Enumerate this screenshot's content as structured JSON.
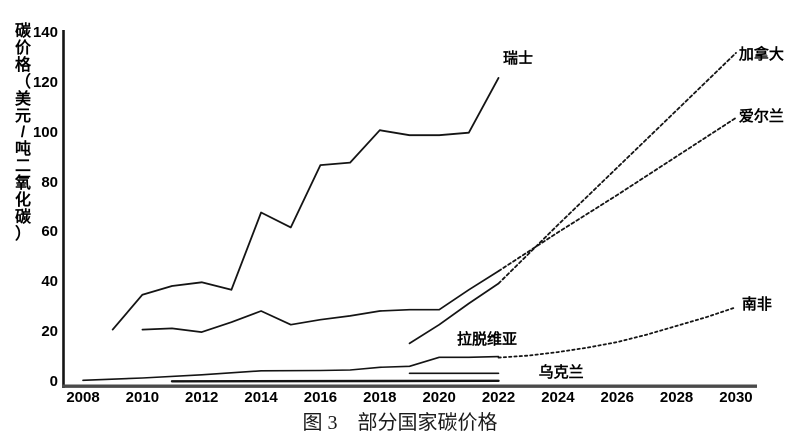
{
  "figure": {
    "caption": "图 3　部分国家碳价格"
  },
  "colors": {
    "line": "#141414",
    "x_axis": "#4a4a4a",
    "y_axis": "#141414",
    "background": "#ffffff"
  },
  "chart_data": {
    "type": "line",
    "title": "图 3　部分国家碳价格",
    "xlabel": "",
    "ylabel": "碳价格（美元/吨二氧化碳）",
    "xlim": [
      2007.3,
      2030.8
    ],
    "ylim": [
      0,
      140
    ],
    "grid": false,
    "legend_position": "inline-annotations",
    "y_ticks": [
      140,
      120,
      100,
      80,
      60,
      40,
      20,
      0
    ],
    "x_ticks": [
      2008,
      2010,
      2012,
      2014,
      2016,
      2018,
      2020,
      2022,
      2024,
      2026,
      2028,
      2030
    ],
    "series": [
      {
        "id": "switzerland",
        "label": "瑞士",
        "style": "solid",
        "width": 1.8,
        "label_anchor": [
          2022.15,
          129.5
        ],
        "points": [
          [
            2009,
            21
          ],
          [
            2010,
            35
          ],
          [
            2011,
            38.5
          ],
          [
            2012,
            40
          ],
          [
            2013,
            37
          ],
          [
            2014,
            68
          ],
          [
            2015,
            62
          ],
          [
            2016,
            87
          ],
          [
            2017,
            88
          ],
          [
            2018,
            101
          ],
          [
            2019,
            99
          ],
          [
            2020,
            99
          ],
          [
            2021,
            100
          ],
          [
            2022,
            122
          ]
        ]
      },
      {
        "id": "ireland",
        "label": "",
        "style": "solid",
        "width": 1.7,
        "points": [
          [
            2010,
            21
          ],
          [
            2011,
            21.5
          ],
          [
            2012,
            20
          ],
          [
            2013,
            24
          ],
          [
            2014,
            28.5
          ],
          [
            2015,
            23
          ],
          [
            2016,
            25
          ],
          [
            2017,
            26.5
          ],
          [
            2018,
            28.5
          ],
          [
            2019,
            29
          ],
          [
            2020,
            29
          ],
          [
            2021,
            37
          ],
          [
            2022,
            44.5
          ]
        ]
      },
      {
        "id": "ireland-projection",
        "label": "爱尔兰",
        "style": "dashed",
        "width": 1.8,
        "label_anchor": [
          2030.1,
          106.5
        ],
        "points": [
          [
            2022,
            44.5
          ],
          [
            2024,
            60
          ],
          [
            2026,
            75
          ],
          [
            2028,
            90.5
          ],
          [
            2030,
            106
          ]
        ]
      },
      {
        "id": "canada",
        "label": "",
        "style": "solid",
        "width": 1.7,
        "points": [
          [
            2019,
            15.5
          ],
          [
            2020,
            23
          ],
          [
            2021,
            31.5
          ],
          [
            2022,
            39.5
          ]
        ]
      },
      {
        "id": "canada-projection",
        "label": "加拿大",
        "style": "dashed",
        "width": 1.8,
        "label_anchor": [
          2030.1,
          131
        ],
        "points": [
          [
            2022,
            39.5
          ],
          [
            2024,
            63
          ],
          [
            2026,
            86
          ],
          [
            2028,
            109
          ],
          [
            2030,
            132
          ]
        ]
      },
      {
        "id": "latvia",
        "label": "拉脱维亚",
        "style": "solid",
        "width": 1.6,
        "label_anchor": [
          2020.6,
          16.9
        ],
        "points": [
          [
            2008,
            0.7
          ],
          [
            2010,
            1.6
          ],
          [
            2012,
            2.9
          ],
          [
            2014,
            4.5
          ],
          [
            2016,
            4.6
          ],
          [
            2017,
            4.8
          ],
          [
            2018,
            5.9
          ],
          [
            2019,
            6.3
          ],
          [
            2020,
            9.9
          ],
          [
            2021,
            9.9
          ],
          [
            2022,
            10.2
          ]
        ]
      },
      {
        "id": "ukraine",
        "label": "乌克兰",
        "style": "solid",
        "width": 1.6,
        "label_anchor": [
          2023.35,
          3.8
        ],
        "points": [
          [
            2019,
            3.5
          ],
          [
            2022,
            3.5
          ]
        ]
      },
      {
        "id": "ukraine-early",
        "label": "",
        "style": "solid",
        "width": 2.4,
        "points": [
          [
            2011,
            0.3
          ],
          [
            2018,
            0.4
          ],
          [
            2022,
            0.5
          ]
        ]
      },
      {
        "id": "south-africa-projection",
        "label": "南非",
        "style": "dotted",
        "width": 1.8,
        "label_anchor": [
          2030.2,
          30.8
        ],
        "points": [
          [
            2022,
            9.8
          ],
          [
            2023,
            10.6
          ],
          [
            2024,
            12
          ],
          [
            2025,
            13.8
          ],
          [
            2026,
            16
          ],
          [
            2027,
            19
          ],
          [
            2028,
            22.5
          ],
          [
            2029,
            26
          ],
          [
            2030,
            30
          ]
        ]
      }
    ]
  }
}
